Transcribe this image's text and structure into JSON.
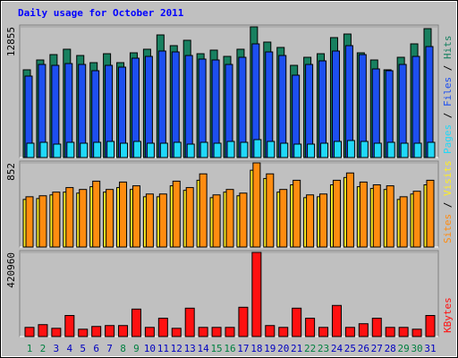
{
  "legend_separator": " / ",
  "chart_data": [
    {
      "type": "bar",
      "title": "Daily usage for October 2011",
      "ylim": [
        0,
        12855
      ],
      "yticks": [
        12855
      ],
      "series": [
        {
          "name": "Hits",
          "color": "#188060",
          "values": [
            8629,
            9597,
            10125,
            10654,
            10037,
            9333,
            10213,
            9333,
            10301,
            10654,
            12062,
            11006,
            11534,
            10213,
            10566,
            9949,
            10654,
            12855,
            11358,
            10830,
            9069,
            9861,
            10213,
            11798,
            12150,
            10301,
            9597,
            8629,
            9861,
            11182,
            12679
          ]
        },
        {
          "name": "Files",
          "color": "#1d4ff0",
          "values": [
            8012,
            9157,
            9069,
            9245,
            9157,
            8541,
            9069,
            8893,
            9773,
            9949,
            10478,
            10390,
            10037,
            9685,
            9597,
            9157,
            9861,
            11182,
            10390,
            10037,
            8101,
            9157,
            9509,
            10478,
            11006,
            10125,
            8717,
            8541,
            9157,
            9949,
            10918
          ]
        },
        {
          "name": "Pages",
          "color": "#20d8f8",
          "values": [
            1409,
            1497,
            1320,
            1497,
            1409,
            1497,
            1585,
            1409,
            1585,
            1409,
            1409,
            1497,
            1320,
            1497,
            1409,
            1585,
            1497,
            1761,
            1585,
            1409,
            1320,
            1320,
            1409,
            1585,
            1673,
            1585,
            1409,
            1497,
            1409,
            1409,
            1497
          ]
        }
      ]
    },
    {
      "type": "bar",
      "ylim": [
        0,
        852
      ],
      "yticks": [
        852
      ],
      "series": [
        {
          "name": "Visits",
          "color": "#ffee22",
          "values": [
            482,
            491,
            528,
            556,
            546,
            611,
            556,
            602,
            583,
            509,
            509,
            620,
            574,
            676,
            500,
            556,
            519,
            778,
            694,
            556,
            630,
            500,
            509,
            630,
            704,
            611,
            593,
            583,
            482,
            537,
            630
          ]
        },
        {
          "name": "Sites",
          "color": "#ff8c10",
          "values": [
            509,
            519,
            556,
            602,
            583,
            667,
            583,
            658,
            620,
            537,
            537,
            667,
            602,
            741,
            528,
            583,
            546,
            852,
            741,
            583,
            676,
            528,
            537,
            676,
            750,
            658,
            630,
            620,
            509,
            565,
            676
          ]
        }
      ]
    },
    {
      "type": "bar",
      "ylim": [
        0,
        420960
      ],
      "yticks": [
        420960
      ],
      "categories": [
        "1",
        "2",
        "3",
        "4",
        "5",
        "6",
        "7",
        "8",
        "9",
        "10",
        "11",
        "12",
        "13",
        "14",
        "15",
        "16",
        "17",
        "18",
        "19",
        "20",
        "21",
        "22",
        "23",
        "24",
        "25",
        "26",
        "27",
        "28",
        "29",
        "30",
        "31"
      ],
      "category_colors": [
        "#008040",
        "#008040",
        "#0000c0",
        "#0000c0",
        "#0000c0",
        "#0000c0",
        "#0000c0",
        "#008040",
        "#008040",
        "#0000c0",
        "#0000c0",
        "#0000c0",
        "#0000c0",
        "#0000c0",
        "#008040",
        "#008040",
        "#0000c0",
        "#0000c0",
        "#0000c0",
        "#0000c0",
        "#0000c0",
        "#008040",
        "#008040",
        "#0000c0",
        "#0000c0",
        "#0000c0",
        "#0000c0",
        "#0000c0",
        "#008040",
        "#008040",
        "#0000c0"
      ],
      "series": [
        {
          "name": "KBytes",
          "color": "#ff1010",
          "values": [
            45757,
            59484,
            41181,
            105241,
            36606,
            50333,
            54908,
            54908,
            137271,
            45757,
            91514,
            41181,
            141847,
            45757,
            45757,
            45757,
            146422,
            420960,
            54908,
            45757,
            141847,
            91514,
            45757,
            155574,
            45757,
            64060,
            91514,
            45757,
            45757,
            36606,
            105241
          ]
        }
      ]
    }
  ]
}
